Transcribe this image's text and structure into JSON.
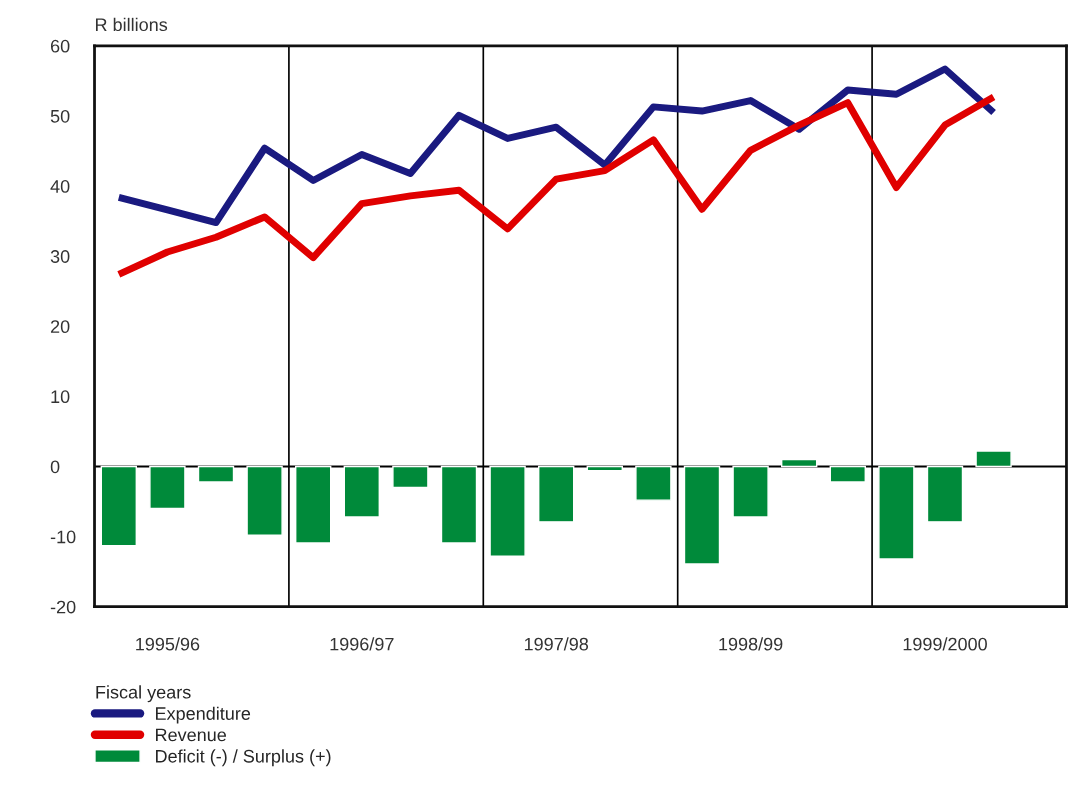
{
  "chart_data": {
    "type": "line",
    "ylabel": "R billions",
    "legend_title": "Fiscal years",
    "categories": [
      null,
      "1995/96",
      null,
      null,
      null,
      "1996/97",
      null,
      null,
      null,
      "1997/98",
      null,
      null,
      null,
      "1998/99",
      null,
      null,
      null,
      "1999/2000",
      null,
      null
    ],
    "ylim": [
      -20,
      60
    ],
    "yticks": [
      -20,
      -10,
      0,
      10,
      20,
      30,
      40,
      50,
      60
    ],
    "series": [
      {
        "name": "Expenditure",
        "color": "#1a1a80",
        "values": [
          38.4,
          36.6,
          34.8,
          45.4,
          40.8,
          44.5,
          41.8,
          50.1,
          46.8,
          48.4,
          43.0,
          51.3,
          50.7,
          52.2,
          48.1,
          53.7,
          53.1,
          56.7,
          50.5,
          null
        ]
      },
      {
        "name": "Revenue",
        "color": "#e00000",
        "values": [
          27.4,
          30.6,
          32.7,
          35.6,
          29.8,
          37.5,
          38.6,
          39.4,
          33.9,
          41.0,
          42.2,
          46.6,
          36.7,
          45.1,
          48.7,
          51.9,
          39.8,
          48.7,
          52.7,
          null
        ]
      },
      {
        "name": "Deficit (-) / Surplus (+)",
        "type": "bar",
        "color": "#008a3a",
        "values": [
          -11.3,
          -6.0,
          -2.2,
          -9.8,
          -10.9,
          -7.2,
          -3.0,
          -10.9,
          -12.8,
          -7.9,
          -0.6,
          -4.8,
          -13.9,
          -7.2,
          1.0,
          -2.2,
          -13.2,
          -7.9,
          2.2,
          null
        ]
      }
    ],
    "ref_lines": [
      {
        "axis": "y",
        "value": 0,
        "color": "#000000"
      }
    ],
    "legend": "bottom left",
    "grid": false
  }
}
